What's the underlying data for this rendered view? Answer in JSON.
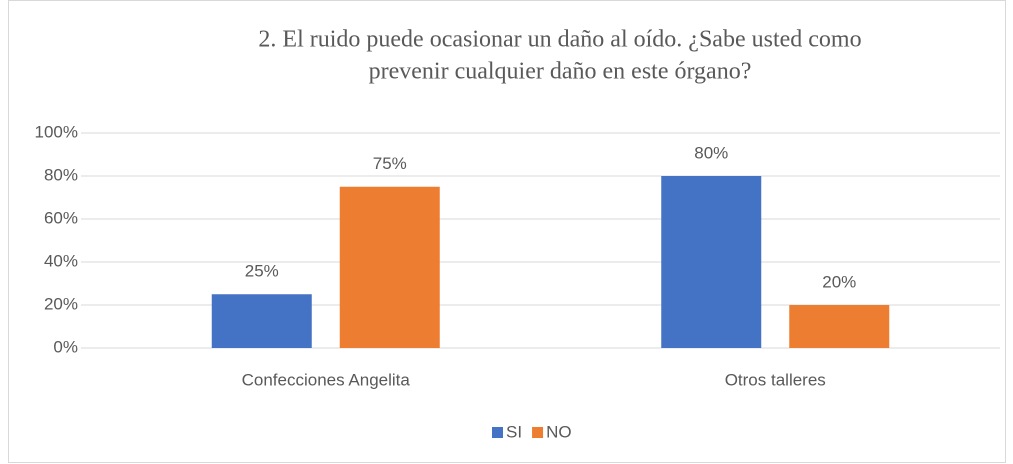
{
  "chart_data": {
    "type": "bar",
    "title": [
      "2. El ruido puede ocasionar un daño al oído. ¿Sabe usted como",
      "prevenir cualquier daño en este órgano?"
    ],
    "categories": [
      "Confecciones Angelita",
      "Otros talleres"
    ],
    "series": [
      {
        "name": "SI",
        "color": "#4472c4",
        "values": [
          25,
          80
        ],
        "value_labels": [
          "25%",
          "80%"
        ]
      },
      {
        "name": "NO",
        "color": "#ed7d31",
        "values": [
          75,
          20
        ],
        "value_labels": [
          "75%",
          "20%"
        ]
      }
    ],
    "ylim": [
      0,
      100
    ],
    "yticks": [
      {
        "value": 0,
        "label": "0%"
      },
      {
        "value": 20,
        "label": "20%"
      },
      {
        "value": 40,
        "label": "40%"
      },
      {
        "value": 60,
        "label": "60%"
      },
      {
        "value": 80,
        "label": "80%"
      },
      {
        "value": 100,
        "label": "100%"
      }
    ],
    "grid": true,
    "legend": "bottom"
  }
}
